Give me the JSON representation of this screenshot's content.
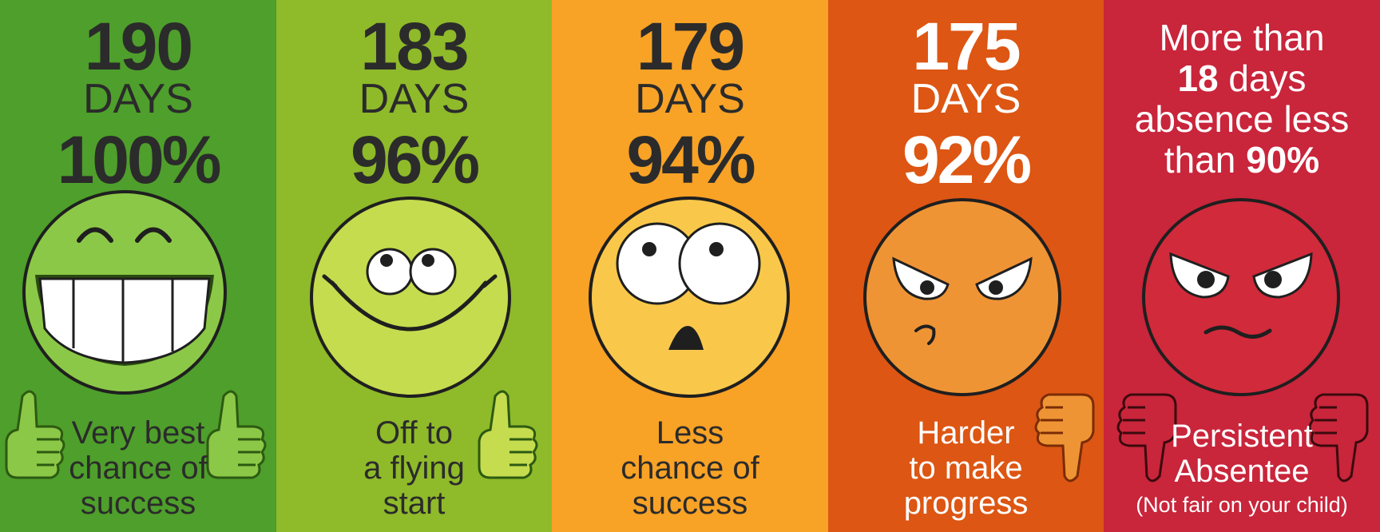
{
  "colors": {
    "green": "#4e9f2b",
    "lime": "#8fba2a",
    "amber": "#f8a226",
    "orange": "#dd5613",
    "red": "#c9253b",
    "dark_text": "#2b2b2b",
    "light_text": "#ffffff"
  },
  "panels": [
    {
      "days": "190",
      "days_label": "DAYS",
      "percent": "100%",
      "caption": [
        "Very best",
        "chance of",
        "success"
      ],
      "face": "grinning-face-icon",
      "hand": "thumbs-up-icon"
    },
    {
      "days": "183",
      "days_label": "DAYS",
      "percent": "96%",
      "caption": [
        "Off to",
        "a flying",
        "start"
      ],
      "face": "smiling-face-icon",
      "hand": "thumbs-up-icon"
    },
    {
      "days": "179",
      "days_label": "DAYS",
      "percent": "94%",
      "caption": [
        "Less",
        "chance of",
        "success"
      ],
      "face": "worried-face-icon"
    },
    {
      "days": "175",
      "days_label": "DAYS",
      "percent": "92%",
      "caption": [
        "Harder",
        "to make",
        "progress"
      ],
      "face": "angry-face-icon",
      "hand": "thumbs-down-icon"
    },
    {
      "heading_line1": "More than",
      "heading_bold1": "18",
      "heading_line2_rest": " days",
      "heading_line3": "absence less",
      "heading_line4_prefix": "than ",
      "heading_bold2": "90%",
      "caption": [
        "Persistent",
        "Absentee"
      ],
      "subcaption": "(Not fair on your child)",
      "face": "furious-face-icon",
      "hand": "thumbs-down-icon"
    }
  ]
}
